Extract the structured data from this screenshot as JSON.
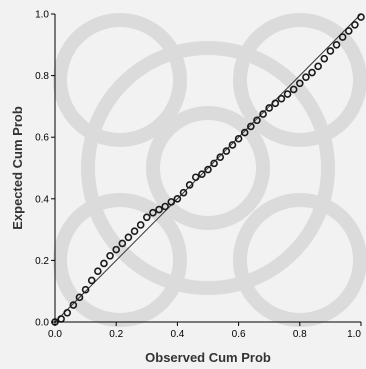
{
  "chart_data": {
    "type": "scatter",
    "title": "",
    "xlabel": "Observed Cum Prob",
    "ylabel": "Expected Cum Prob",
    "xlim": [
      0,
      1
    ],
    "ylim": [
      0,
      1
    ],
    "x_ticks": [
      "0.0",
      "0.2",
      "0.4",
      "0.6",
      "0.8",
      "1.0"
    ],
    "y_ticks": [
      "0.0",
      "0.2",
      "0.4",
      "0.6",
      "0.8",
      "1.0"
    ],
    "grid": false,
    "legend": "none",
    "colors": {
      "plot_bg": "#f2f2f2",
      "marker": "#1a1a1a",
      "axis": "#000000",
      "watermark": "#d9d9d9"
    },
    "series": [
      {
        "x": [
          0.0,
          0.02,
          0.04,
          0.06,
          0.08,
          0.1,
          0.12,
          0.14,
          0.16,
          0.18,
          0.2,
          0.22,
          0.24,
          0.26,
          0.28,
          0.3,
          0.32,
          0.34,
          0.36,
          0.38,
          0.4,
          0.42,
          0.44,
          0.46,
          0.48,
          0.5,
          0.52,
          0.54,
          0.56,
          0.58,
          0.6,
          0.62,
          0.64,
          0.66,
          0.68,
          0.7,
          0.72,
          0.74,
          0.76,
          0.78,
          0.8,
          0.82,
          0.84,
          0.86,
          0.88,
          0.9,
          0.92,
          0.94,
          0.96,
          0.98,
          1.0
        ],
        "y": [
          0.0,
          0.01,
          0.03,
          0.055,
          0.08,
          0.105,
          0.135,
          0.165,
          0.19,
          0.215,
          0.235,
          0.255,
          0.275,
          0.295,
          0.315,
          0.34,
          0.355,
          0.365,
          0.375,
          0.39,
          0.4,
          0.42,
          0.445,
          0.47,
          0.48,
          0.495,
          0.515,
          0.535,
          0.555,
          0.575,
          0.595,
          0.615,
          0.635,
          0.655,
          0.675,
          0.695,
          0.71,
          0.725,
          0.74,
          0.755,
          0.775,
          0.795,
          0.81,
          0.83,
          0.855,
          0.88,
          0.9,
          0.925,
          0.945,
          0.965,
          0.99
        ]
      }
    ]
  }
}
